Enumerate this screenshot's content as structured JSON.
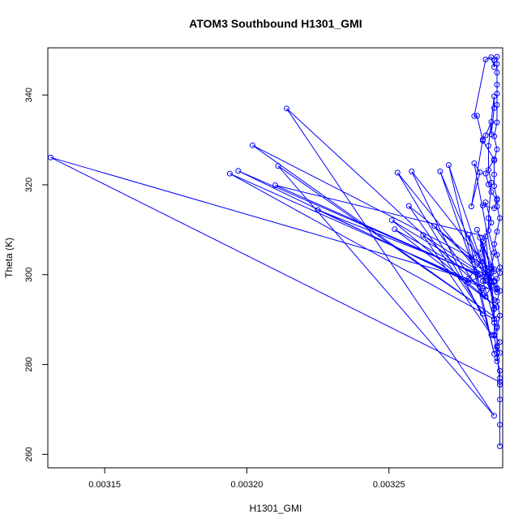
{
  "chart_data": {
    "type": "line",
    "title": "ATOM3 Southbound H1301_GMI",
    "xlabel": "H1301_GMI",
    "ylabel": "Theta (K)",
    "xlim": [
      0.00313,
      0.00329
    ],
    "ylim": [
      257.0,
      350.5
    ],
    "x_ticks": [
      {
        "value": 0.00315,
        "label": "0.00315"
      },
      {
        "value": 0.0032,
        "label": "0.00320"
      },
      {
        "value": 0.00325,
        "label": "0.00325"
      }
    ],
    "y_ticks": [
      {
        "value": 260,
        "label": "260"
      },
      {
        "value": 280,
        "label": "280"
      },
      {
        "value": 300,
        "label": "300"
      },
      {
        "value": 320,
        "label": "320"
      },
      {
        "value": 340,
        "label": "340"
      }
    ],
    "grid": false,
    "legend": "none",
    "marker": "open-circle",
    "line_color": "#0000ff",
    "series": [
      {
        "points": [
          [
            0.003289,
            261.8
          ],
          [
            0.003289,
            266.6
          ],
          [
            0.003289,
            272.2
          ],
          [
            0.003289,
            275.5
          ],
          [
            0.003289,
            277.0
          ],
          [
            0.003289,
            278.6
          ],
          [
            0.003288,
            281.4
          ],
          [
            0.003289,
            282.6
          ],
          [
            0.003288,
            284.1
          ],
          [
            0.003289,
            285.0
          ],
          [
            0.003287,
            286.6
          ],
          [
            0.003288,
            288.1
          ],
          [
            0.003289,
            290.9
          ],
          [
            0.003288,
            294.1
          ],
          [
            0.003289,
            296.4
          ],
          [
            0.003288,
            297.0
          ],
          [
            0.003288,
            299.1
          ],
          [
            0.003289,
            300.4
          ],
          [
            0.003289,
            301.6
          ],
          [
            0.003288,
            304.4
          ],
          [
            0.003287,
            306.8
          ],
          [
            0.003288,
            309.6
          ],
          [
            0.003289,
            312.6
          ],
          [
            0.003288,
            315.2
          ],
          [
            0.003288,
            316.9
          ],
          [
            0.003287,
            319.7
          ],
          [
            0.003287,
            322.3
          ],
          [
            0.003287,
            325.4
          ],
          [
            0.003288,
            327.9
          ],
          [
            0.003287,
            330.8
          ],
          [
            0.003288,
            333.9
          ],
          [
            0.003288,
            337.8
          ],
          [
            0.003288,
            340.3
          ],
          [
            0.003288,
            342.3
          ],
          [
            0.003288,
            345.0
          ],
          [
            0.003288,
            346.9
          ],
          [
            0.003288,
            348.5
          ],
          [
            0.003287,
            347.8
          ],
          [
            0.003287,
            346.2
          ],
          [
            0.003286,
            348.4
          ],
          [
            0.003284,
            347.9
          ],
          [
            0.00328,
            335.3
          ],
          [
            0.003281,
            335.4
          ],
          [
            0.003283,
            329.8
          ],
          [
            0.003287,
            325.7
          ],
          [
            0.003284,
            322.5
          ],
          [
            0.003285,
            320.1
          ],
          [
            0.003286,
            318.4
          ],
          [
            0.003288,
            316.6
          ],
          [
            0.003287,
            314.8
          ],
          [
            0.003283,
            315.4
          ],
          [
            0.003284,
            316.1
          ],
          [
            0.003286,
            311.6
          ],
          [
            0.003283,
            307.3
          ],
          [
            0.003282,
            304.9
          ],
          [
            0.003279,
            303.8
          ],
          [
            0.003286,
            299.4
          ],
          [
            0.003288,
            296.8
          ],
          [
            0.003283,
            297.0
          ],
          [
            0.003284,
            295.1
          ],
          [
            0.003286,
            297.5
          ],
          [
            0.003283,
            298.6
          ],
          [
            0.003287,
            290.1
          ],
          [
            0.003287,
            286.4
          ],
          [
            0.003288,
            282.6
          ],
          [
            0.003289,
            276.1
          ],
          [
            0.003131,
            326.1
          ],
          [
            0.003278,
            299.1
          ],
          [
            0.003283,
            303.6
          ],
          [
            0.003285,
            300.0
          ],
          [
            0.003288,
            296.1
          ],
          [
            0.003194,
            322.5
          ],
          [
            0.003287,
            290.1
          ],
          [
            0.003284,
            308.5
          ],
          [
            0.00321,
            319.9
          ],
          [
            0.003287,
            298.4
          ],
          [
            0.003197,
            323.1
          ],
          [
            0.003278,
            298.3
          ],
          [
            0.003287,
            301.2
          ],
          [
            0.003202,
            328.8
          ],
          [
            0.003288,
            290.2
          ],
          [
            0.003211,
            324.2
          ],
          [
            0.003287,
            268.6
          ],
          [
            0.003214,
            337.0
          ],
          [
            0.003282,
            297.3
          ],
          [
            0.003225,
            314.4
          ],
          [
            0.003282,
            300.1
          ],
          [
            0.003251,
            312.1
          ],
          [
            0.003288,
            292.8
          ],
          [
            0.003252,
            310.1
          ],
          [
            0.003284,
            298.6
          ],
          [
            0.003253,
            322.7
          ],
          [
            0.003283,
            291.3
          ],
          [
            0.003257,
            315.3
          ],
          [
            0.003286,
            300.5
          ],
          [
            0.003258,
            323.0
          ],
          [
            0.003286,
            286.6
          ],
          [
            0.003262,
            308.8
          ],
          [
            0.003287,
            298.6
          ],
          [
            0.003266,
            310.8
          ],
          [
            0.003283,
            295.6
          ],
          [
            0.003268,
            323.0
          ],
          [
            0.003287,
            294.4
          ],
          [
            0.003271,
            324.4
          ],
          [
            0.003287,
            282.4
          ],
          [
            0.003278,
            308.9
          ],
          [
            0.003284,
            300.2
          ],
          [
            0.003283,
            306.5
          ],
          [
            0.003287,
            292.3
          ],
          [
            0.003282,
            308.2
          ],
          [
            0.003286,
            301.3
          ],
          [
            0.003281,
            310.0
          ],
          [
            0.003287,
            300.7
          ],
          [
            0.00328,
            324.8
          ],
          [
            0.003282,
            322.8
          ],
          [
            0.003279,
            315.2
          ],
          [
            0.003283,
            330.1
          ],
          [
            0.003284,
            331.0
          ],
          [
            0.003286,
            334.0
          ],
          [
            0.003286,
            331.2
          ],
          [
            0.003287,
            337.1
          ],
          [
            0.003287,
            339.7
          ],
          [
            0.003285,
            328.7
          ],
          [
            0.003285,
            323.3
          ],
          [
            0.003286,
            320.5
          ],
          [
            0.003285,
            312.6
          ],
          [
            0.003285,
            309.8
          ],
          [
            0.003287,
            304.9
          ],
          [
            0.003286,
            301.7
          ],
          [
            0.003286,
            298.3
          ],
          [
            0.003287,
            292.4
          ],
          [
            0.003287,
            289.3
          ],
          [
            0.003288,
            288.5
          ],
          [
            0.003288,
            283.8
          ],
          [
            0.003288,
            280.7
          ]
        ]
      }
    ]
  }
}
